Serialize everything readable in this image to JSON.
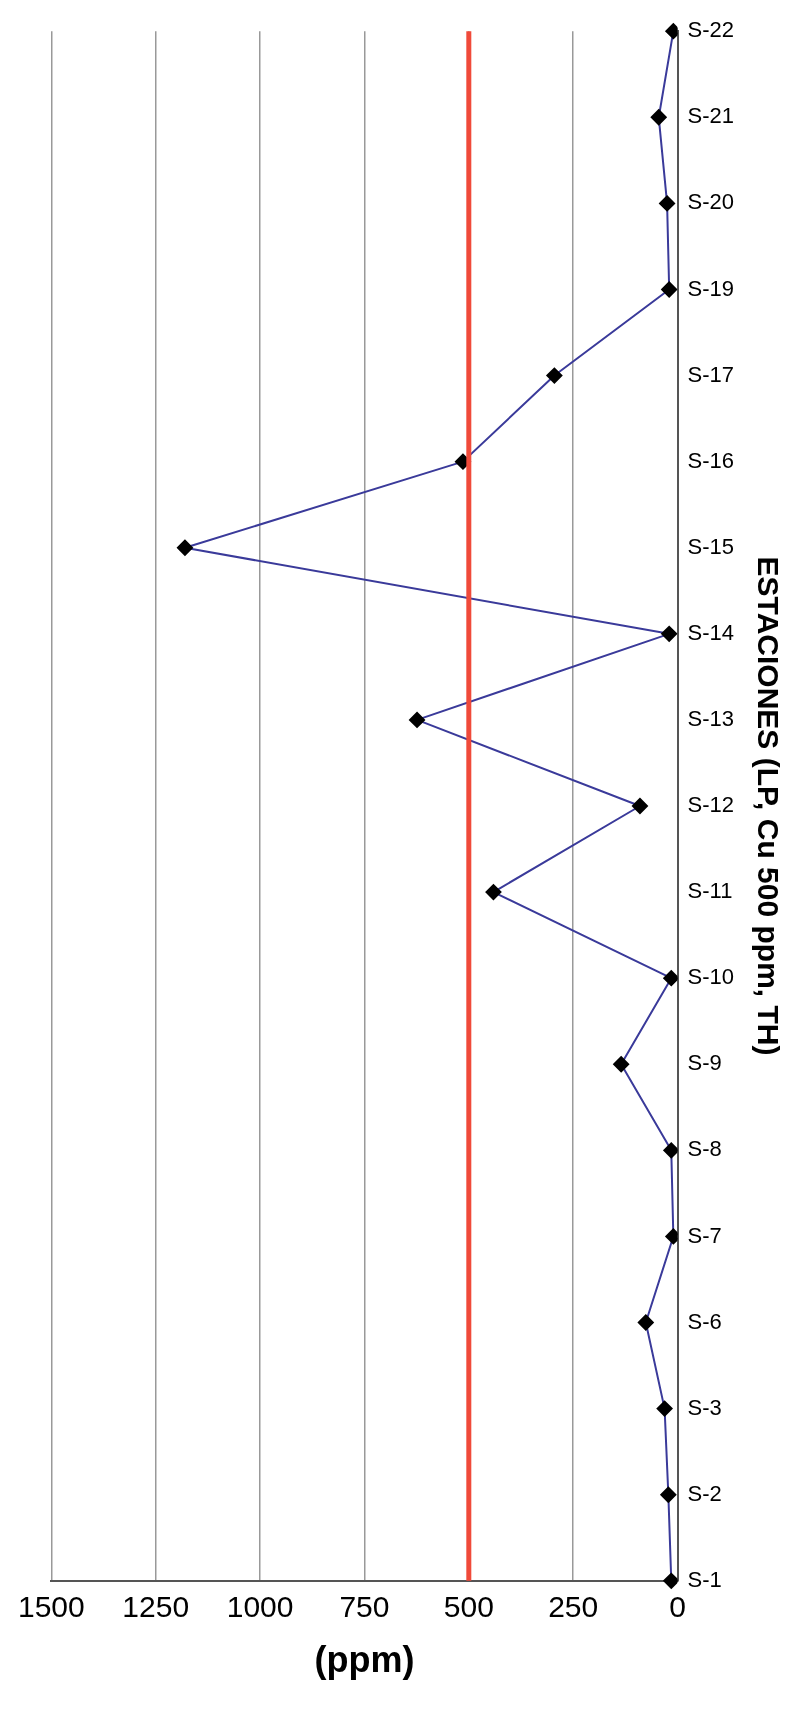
{
  "chart_data": {
    "type": "line",
    "orientation": "horizontal",
    "xlabel": "(ppm)",
    "ylabel": "ESTACIONES (LP, Cu 500 ppm, TH)",
    "categories": [
      "S-22",
      "S-21",
      "S-20",
      "S-19",
      "S-17",
      "S-16",
      "S-15",
      "S-14",
      "S-13",
      "S-12",
      "S-11",
      "S-10",
      "S-9",
      "S-8",
      "S-7",
      "S-6",
      "S-3",
      "S-2",
      "S-1"
    ],
    "series": [
      {
        "color": "#3a3a9a",
        "values": [
          10,
          45,
          25,
          20,
          295,
          514,
          1180,
          20,
          624,
          90,
          441,
          15,
          135,
          15,
          10,
          76,
          31,
          22,
          15
        ]
      }
    ],
    "xlim": [
      1500,
      0
    ],
    "xticks": [
      1500,
      1250,
      1000,
      750,
      500,
      250,
      0
    ],
    "grid": "x",
    "legend": false,
    "marker": "diamond",
    "line_style": "solid",
    "ref_lines": [
      {
        "axis": "x",
        "value": 500,
        "color": "#f04a3a"
      }
    ]
  }
}
